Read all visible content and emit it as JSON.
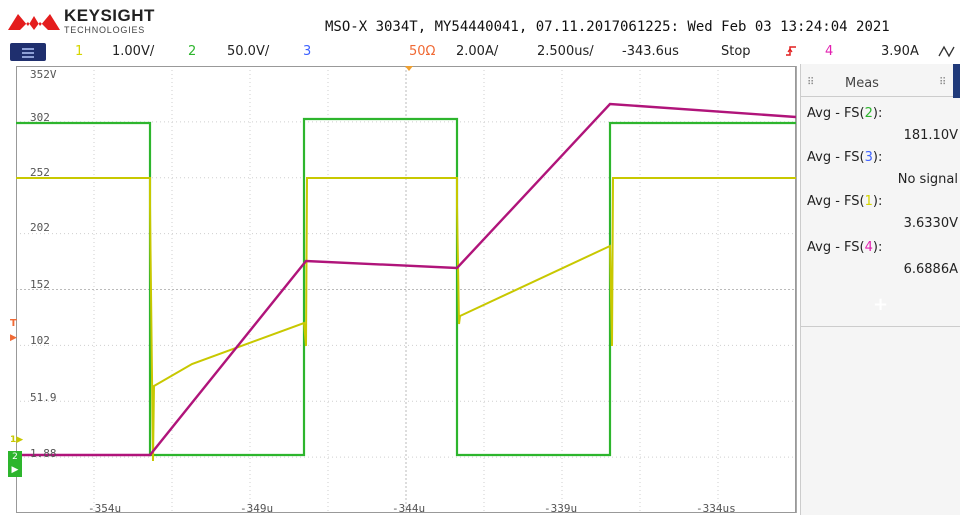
{
  "brand": {
    "name": "KEYSIGHT",
    "sub": "TECHNOLOGIES"
  },
  "scope_id": "MSO-X 3034T, MY54440041, 07.11.2017061225: Wed Feb 03 13:24:04 2021",
  "settings": {
    "ch1_num": "1",
    "ch1_scale": "1.00V/",
    "ch2_num": "2",
    "ch2_scale": "50.0V/",
    "ch3_num": "3",
    "ch3_imp": "50Ω",
    "ch3_scale": "2.00A/",
    "timebase": "2.500us/",
    "delay": "-343.6us",
    "run_state": "Stop",
    "trig_icon": "trigger-edge-icon",
    "trig_ch": "4",
    "trig_level": "3.90A"
  },
  "y_labels": [
    "352V",
    "302",
    "252",
    "202",
    "152",
    "102",
    "51.9",
    "1.88"
  ],
  "x_labels": [
    "-354u",
    "-349u",
    "-344u",
    "-339u",
    "-334us"
  ],
  "meas": {
    "tab": "Meas",
    "rows": [
      {
        "prefix": "Avg - FS(",
        "ch": "2",
        "suffix": "):",
        "value": "181.10V",
        "color": "#2db52d"
      },
      {
        "prefix": "Avg - FS(",
        "ch": "3",
        "suffix": "):",
        "value": "No signal",
        "color": "#3f63ff"
      },
      {
        "prefix": "Avg - FS(",
        "ch": "1",
        "suffix": "):",
        "value": "3.6330V",
        "color": "#d5d500"
      },
      {
        "prefix": "Avg - FS(",
        "ch": "4",
        "suffix": "):",
        "value": "6.6886A",
        "color": "#e21fb0"
      }
    ],
    "add": "+"
  },
  "colors": {
    "ch1": "#c8c800",
    "ch2": "#2db52d",
    "ch4": "#b0147a"
  }
}
